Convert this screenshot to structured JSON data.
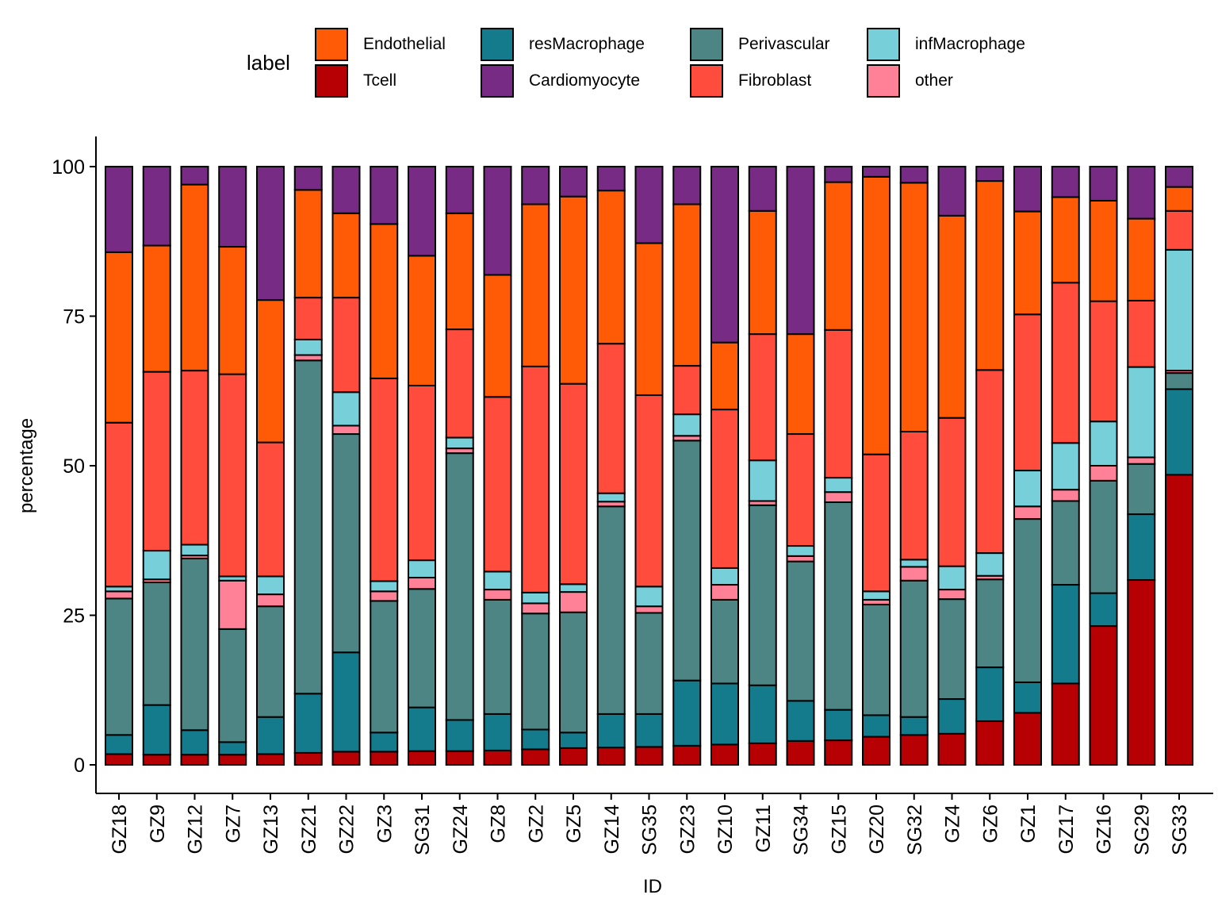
{
  "chart_data": {
    "type": "bar",
    "stacked": true,
    "title": "",
    "xlabel": "ID",
    "ylabel": "percentage",
    "ylim": [
      0,
      100
    ],
    "yticks": [
      0,
      25,
      50,
      75,
      100
    ],
    "grid": false,
    "legend": {
      "title": "label",
      "placement": "top",
      "entries": [
        "Endothelial",
        "resMacrophage",
        "Perivascular",
        "infMacrophage",
        "Tcell",
        "Cardiomyocyte",
        "Fibroblast",
        "other"
      ]
    },
    "stack_order": [
      "Tcell",
      "resMacrophage",
      "Perivascular",
      "other",
      "infMacrophage",
      "Fibroblast",
      "Endothelial",
      "Cardiomyocyte"
    ],
    "colors": {
      "Endothelial": "#FF5A06",
      "resMacrophage": "#137B8C",
      "Perivascular": "#4D8585",
      "infMacrophage": "#76CFD9",
      "Tcell": "#B70004",
      "Cardiomyocyte": "#772B84",
      "Fibroblast": "#FF4C3C",
      "other": "#FF8198"
    },
    "categories": [
      "GZ18",
      "GZ9",
      "GZ12",
      "GZ7",
      "GZ13",
      "GZ21",
      "GZ22",
      "GZ3",
      "SG31",
      "GZ24",
      "GZ8",
      "GZ2",
      "GZ5",
      "GZ14",
      "SG35",
      "GZ23",
      "GZ10",
      "GZ11",
      "SG34",
      "GZ15",
      "GZ20",
      "SG32",
      "GZ4",
      "GZ6",
      "GZ1",
      "GZ17",
      "GZ16",
      "SG29",
      "SG33"
    ],
    "series": [
      {
        "name": "Tcell",
        "values": [
          1.8,
          1.7,
          1.7,
          1.7,
          1.8,
          2.0,
          2.2,
          2.2,
          2.3,
          2.3,
          2.4,
          2.6,
          2.8,
          2.9,
          3.0,
          3.2,
          3.4,
          3.6,
          4.0,
          4.1,
          4.7,
          5.0,
          5.2,
          7.3,
          8.7,
          13.6,
          23.2,
          30.9,
          48.5
        ]
      },
      {
        "name": "resMacrophage",
        "values": [
          3.2,
          8.3,
          4.1,
          2.1,
          6.2,
          9.9,
          16.6,
          3.2,
          7.3,
          5.2,
          6.1,
          3.3,
          2.6,
          5.6,
          5.5,
          10.9,
          10.2,
          9.7,
          6.7,
          5.1,
          3.6,
          3.0,
          5.8,
          9.0,
          5.1,
          16.5,
          5.5,
          11.0,
          14.3
        ]
      },
      {
        "name": "Perivascular",
        "values": [
          22.8,
          20.5,
          28.7,
          18.9,
          18.5,
          55.7,
          36.5,
          22.0,
          19.8,
          44.6,
          19.1,
          19.4,
          20.1,
          34.7,
          16.9,
          40.1,
          14.0,
          30.1,
          23.3,
          34.7,
          18.5,
          22.8,
          16.7,
          14.7,
          27.3,
          14.0,
          18.8,
          8.4,
          2.7
        ]
      },
      {
        "name": "other",
        "values": [
          1.2,
          0.5,
          0.5,
          8.1,
          2.0,
          0.9,
          1.4,
          1.6,
          1.9,
          0.8,
          1.7,
          1.7,
          3.4,
          0.8,
          1.1,
          0.8,
          2.5,
          0.7,
          0.9,
          1.7,
          0.8,
          2.3,
          1.6,
          0.6,
          2.1,
          1.9,
          2.5,
          1.1,
          0.4
        ]
      },
      {
        "name": "infMacrophage",
        "values": [
          0.8,
          4.8,
          1.8,
          0.7,
          3.0,
          2.6,
          5.6,
          1.7,
          2.9,
          1.8,
          3.0,
          1.8,
          1.3,
          1.4,
          3.3,
          3.6,
          2.8,
          6.8,
          1.7,
          2.4,
          1.4,
          1.2,
          3.9,
          3.8,
          6.0,
          7.8,
          7.4,
          15.1,
          20.2
        ]
      },
      {
        "name": "Fibroblast",
        "values": [
          27.4,
          29.9,
          29.1,
          33.8,
          22.4,
          7.0,
          15.8,
          33.9,
          29.2,
          18.1,
          29.2,
          37.8,
          33.5,
          25.0,
          32.0,
          8.1,
          26.5,
          21.1,
          18.7,
          24.7,
          22.9,
          21.4,
          24.8,
          30.6,
          26.1,
          26.8,
          20.1,
          11.1,
          6.5
        ]
      },
      {
        "name": "Endothelial",
        "values": [
          28.5,
          21.1,
          31.1,
          21.3,
          23.8,
          18.0,
          14.1,
          25.8,
          21.7,
          19.4,
          20.4,
          27.1,
          31.3,
          25.6,
          25.4,
          27.0,
          11.2,
          20.6,
          16.7,
          24.7,
          46.4,
          41.6,
          33.8,
          31.6,
          17.2,
          14.3,
          16.8,
          13.7,
          4.0
        ]
      },
      {
        "name": "Cardiomyocyte",
        "values": [
          14.3,
          13.2,
          3.0,
          13.4,
          22.3,
          3.9,
          7.8,
          9.6,
          14.9,
          7.8,
          18.1,
          6.3,
          5.0,
          4.0,
          12.8,
          6.3,
          29.4,
          7.4,
          28.0,
          2.6,
          1.7,
          2.7,
          8.2,
          2.4,
          7.5,
          5.1,
          5.7,
          8.7,
          3.4
        ]
      }
    ]
  }
}
